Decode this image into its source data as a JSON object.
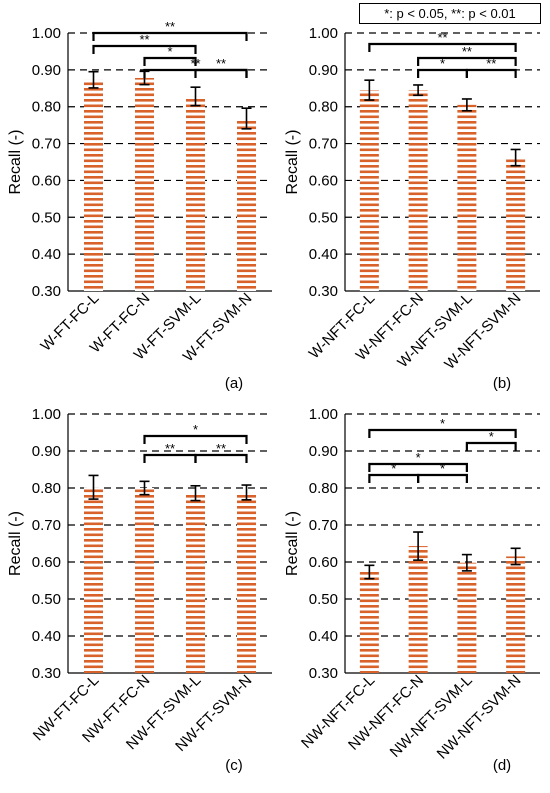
{
  "significance_legend": "*: p < 0.05, **: p < 0.01",
  "colors": {
    "bar_stripe": "#d9622a",
    "bar_gap": "#ffffff",
    "axis": "#000000"
  },
  "chart_data": [
    {
      "type": "bar",
      "panel_label": "(a)",
      "ylabel": "Recall (-)",
      "ylim": [
        0.3,
        1.0
      ],
      "yticks": [
        "0.30",
        "0.40",
        "0.50",
        "0.60",
        "0.70",
        "0.80",
        "0.90",
        "1.00"
      ],
      "grid": "dashed horizontal",
      "categories": [
        "W-FT-FC-L",
        "W-FT-FC-N",
        "W-FT-SVM-L",
        "W-FT-SVM-N"
      ],
      "values": [
        0.873,
        0.878,
        0.828,
        0.768
      ],
      "errors": [
        0.022,
        0.018,
        0.025,
        0.028
      ],
      "significance": [
        {
          "from": 0,
          "to": 3,
          "label": "**"
        },
        {
          "from": 0,
          "to": 2,
          "label": "**"
        },
        {
          "from": 1,
          "to": 3,
          "label": "**"
        },
        {
          "from": 1,
          "to": 2,
          "label": "*"
        },
        {
          "from": 2,
          "to": 3,
          "label": "**"
        }
      ]
    },
    {
      "type": "bar",
      "panel_label": "(b)",
      "ylabel": "Recall (-)",
      "ylim": [
        0.3,
        1.0
      ],
      "yticks": [
        "0.30",
        "0.40",
        "0.50",
        "0.60",
        "0.70",
        "0.80",
        "0.90",
        "1.00"
      ],
      "grid": "dashed horizontal",
      "categories": [
        "W-NFT-FC-L",
        "W-NFT-FC-N",
        "W-NFT-SVM-L",
        "W-NFT-SVM-N"
      ],
      "values": [
        0.845,
        0.845,
        0.805,
        0.662
      ],
      "errors": [
        0.027,
        0.014,
        0.016,
        0.022
      ],
      "significance": [
        {
          "from": 0,
          "to": 3,
          "label": "**"
        },
        {
          "from": 1,
          "to": 3,
          "label": "**"
        },
        {
          "from": 1,
          "to": 2,
          "label": "*"
        },
        {
          "from": 2,
          "to": 3,
          "label": "**"
        }
      ]
    },
    {
      "type": "bar",
      "panel_label": "(c)",
      "ylabel": "Recall (-)",
      "ylim": [
        0.3,
        1.0
      ],
      "yticks": [
        "0.30",
        "0.40",
        "0.50",
        "0.60",
        "0.70",
        "0.80",
        "0.90",
        "1.00"
      ],
      "grid": "dashed horizontal",
      "categories": [
        "NW-FT-FC-L",
        "NW-FT-FC-N",
        "NW-FT-SVM-L",
        "NW-FT-SVM-N"
      ],
      "values": [
        0.802,
        0.8,
        0.786,
        0.788
      ],
      "errors": [
        0.032,
        0.018,
        0.02,
        0.02
      ],
      "significance": [
        {
          "from": 1,
          "to": 3,
          "label": "*"
        },
        {
          "from": 1,
          "to": 2,
          "label": "**"
        },
        {
          "from": 2,
          "to": 3,
          "label": "**"
        }
      ]
    },
    {
      "type": "bar",
      "panel_label": "(d)",
      "ylabel": "Recall (-)",
      "ylim": [
        0.3,
        1.0
      ],
      "yticks": [
        "0.30",
        "0.40",
        "0.50",
        "0.60",
        "0.70",
        "0.80",
        "0.90",
        "1.00"
      ],
      "grid": "dashed horizontal",
      "categories": [
        "NW-NFT-FC-L",
        "NW-NFT-FC-N",
        "NW-NFT-SVM-L",
        "NW-NFT-SVM-N"
      ],
      "values": [
        0.573,
        0.643,
        0.598,
        0.615
      ],
      "errors": [
        0.018,
        0.038,
        0.022,
        0.022
      ],
      "significance": [
        {
          "from": 0,
          "to": 3,
          "label": "*"
        },
        {
          "from": 2,
          "to": 3,
          "label": "*"
        },
        {
          "from": 0,
          "to": 2,
          "label": "*"
        },
        {
          "from": 0,
          "to": 1,
          "label": "*"
        },
        {
          "from": 1,
          "to": 2,
          "label": "*"
        }
      ]
    }
  ]
}
